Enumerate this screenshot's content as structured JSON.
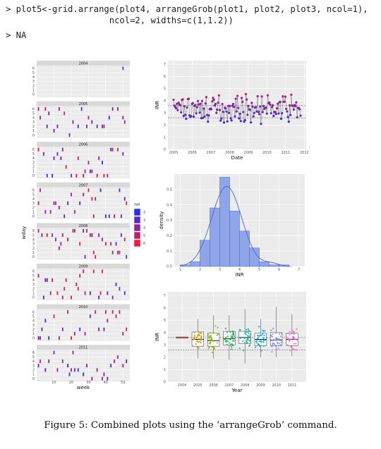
{
  "code": {
    "line1": "> plot5<-grid.arrange(plot4, arrangeGrob(plot1, plot2, plot3, ncol=1),",
    "line2": "                    ncol=2, widths=c(1,1.2))",
    "line3": "> NA"
  },
  "caption": "Figure 5: Combined plots using the ‘arrangeGrob’ command.",
  "colors": {
    "panel_bg": "#ebebeb",
    "grid": "#ffffff",
    "strip_bg": "#d9d9d9",
    "inr_low": "#2c2cf0",
    "inr_high": "#ee1b3d",
    "hist_fill": "#8ea5ea",
    "hist_stroke": "#4a63d9"
  },
  "chart_data": [
    {
      "type": "tile",
      "panel": "plot4",
      "xlabel": "week",
      "ylabel": "wday",
      "x_ticks": [
        "10",
        "20",
        "30",
        "40",
        "50"
      ],
      "y_ticks": [
        "0",
        "1",
        "2",
        "3",
        "4",
        "5",
        "6"
      ],
      "facets": [
        "2004",
        "2005",
        "2006",
        "2007",
        "2008",
        "2009",
        "2010",
        "2011"
      ],
      "legend": {
        "title": "INR",
        "labels": [
          "2",
          "3",
          "4",
          "5",
          "6"
        ]
      }
    },
    {
      "type": "line",
      "panel": "plot1",
      "xlabel": "Date",
      "ylabel": "INR",
      "x_ticks": [
        "2005",
        "2006",
        "2007",
        "2008",
        "2009",
        "2010",
        "2011",
        "2012"
      ],
      "y_ticks": [
        "0",
        "1",
        "2",
        "3",
        "4",
        "5",
        "6",
        "7"
      ],
      "xlim": [
        2004.7,
        2012.1
      ],
      "ylim": [
        0,
        7.3
      ],
      "hlines": [
        2.6,
        3.6
      ]
    },
    {
      "type": "bar",
      "panel": "plot2",
      "xlabel": "INR",
      "ylabel": "density",
      "x_ticks": [
        "1",
        "2",
        "3",
        "4",
        "5",
        "6",
        "7"
      ],
      "y_ticks": [
        "0.0",
        "0.1",
        "0.2",
        "0.3",
        "0.4",
        "0.5"
      ],
      "xlim": [
        0.7,
        7.3
      ],
      "ylim": [
        0,
        0.6
      ],
      "bins": [
        {
          "x0": 1.0,
          "x1": 1.5,
          "density": 0.01
        },
        {
          "x0": 1.5,
          "x1": 2.0,
          "density": 0.03
        },
        {
          "x0": 2.0,
          "x1": 2.5,
          "density": 0.17
        },
        {
          "x0": 2.5,
          "x1": 3.0,
          "density": 0.38
        },
        {
          "x0": 3.0,
          "x1": 3.5,
          "density": 0.58
        },
        {
          "x0": 3.5,
          "x1": 4.0,
          "density": 0.36
        },
        {
          "x0": 4.0,
          "x1": 4.5,
          "density": 0.23
        },
        {
          "x0": 4.5,
          "x1": 5.0,
          "density": 0.12
        },
        {
          "x0": 5.0,
          "x1": 5.5,
          "density": 0.03
        },
        {
          "x0": 5.5,
          "x1": 6.0,
          "density": 0.01
        },
        {
          "x0": 6.0,
          "x1": 6.5,
          "density": 0.01
        }
      ]
    },
    {
      "type": "box",
      "panel": "plot3",
      "xlabel": "Year",
      "ylabel": "INR",
      "categories": [
        "2004",
        "2005",
        "2006",
        "2007",
        "2008",
        "2009",
        "2010",
        "2011"
      ],
      "y_ticks": [
        "0",
        "1",
        "2",
        "3",
        "4",
        "5",
        "6",
        "7"
      ],
      "ylim": [
        0,
        7.3
      ],
      "hlines": [
        2.6,
        3.6
      ],
      "series": [
        {
          "category": "2004",
          "color": "#e8434a",
          "q1": 3.55,
          "median": 3.6,
          "q3": 3.65,
          "lo": 3.55,
          "hi": 3.65
        },
        {
          "category": "2005",
          "color": "#c49a00",
          "q1": 2.9,
          "median": 3.45,
          "q3": 4.05,
          "lo": 1.9,
          "hi": 5.1
        },
        {
          "category": "2006",
          "color": "#8ab800",
          "q1": 2.9,
          "median": 3.35,
          "q3": 3.95,
          "lo": 1.9,
          "hi": 5.4
        },
        {
          "category": "2007",
          "color": "#00b14a",
          "q1": 3.0,
          "median": 3.5,
          "q3": 4.1,
          "lo": 1.8,
          "hi": 5.4
        },
        {
          "category": "2008",
          "color": "#00b5a0",
          "q1": 3.1,
          "median": 3.6,
          "q3": 4.1,
          "lo": 1.5,
          "hi": 5.9
        },
        {
          "category": "2009",
          "color": "#00a6e0",
          "q1": 2.95,
          "median": 3.45,
          "q3": 3.95,
          "lo": 2.0,
          "hi": 5.1
        },
        {
          "category": "2010",
          "color": "#7f7fff",
          "q1": 2.95,
          "median": 3.4,
          "q3": 4.0,
          "lo": 2.0,
          "hi": 6.1
        },
        {
          "category": "2011",
          "color": "#ed5ebf",
          "q1": 2.95,
          "median": 3.45,
          "q3": 3.95,
          "lo": 2.1,
          "hi": 5.5
        }
      ]
    }
  ]
}
